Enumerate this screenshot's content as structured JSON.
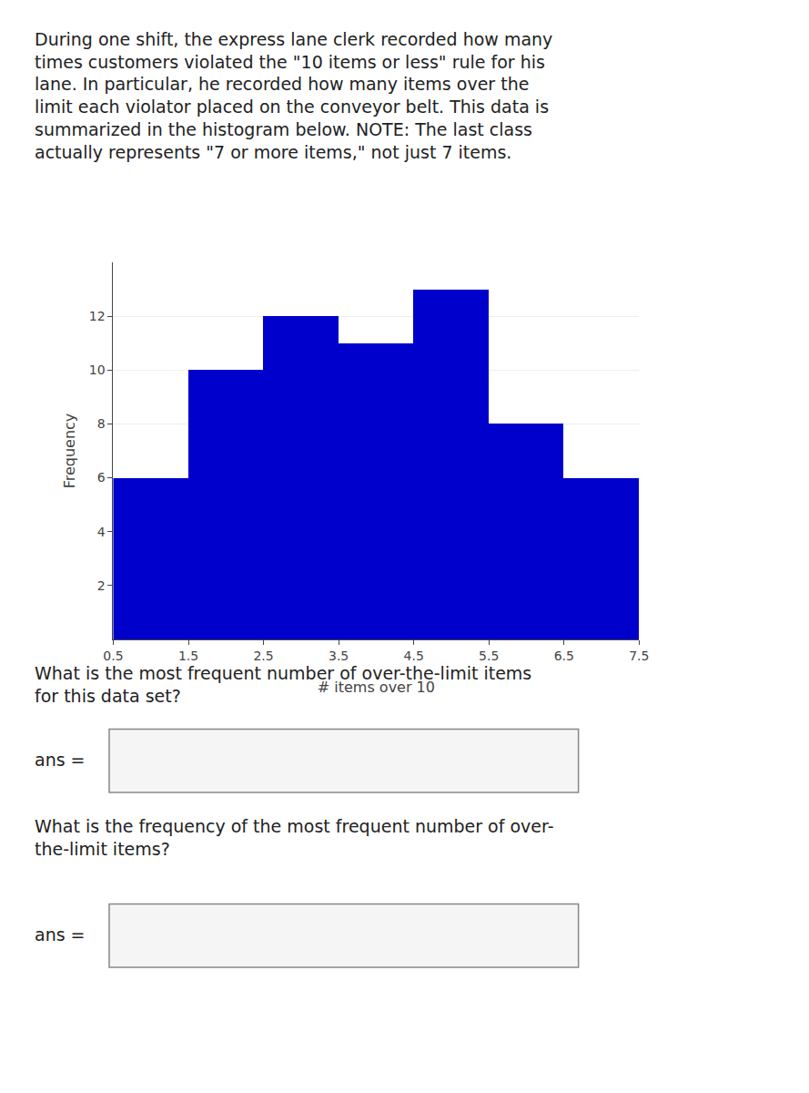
{
  "chart_data": {
    "type": "histogram",
    "subtitle": "During one shift, the express lane clerk recorded how many\ntimes customers violated the \"10 items or less\" rule for his\nlane. In particular, he recorded how many items over the\nlimit each violator placed on the conveyor belt. This data is\nsummarized in the histogram below. NOTE: The last class\nactually represents \"7 or more items,\" not just 7 items.",
    "bins": [
      0.5,
      1.5,
      2.5,
      3.5,
      4.5,
      5.5,
      6.5,
      7.5
    ],
    "values": [
      6,
      10,
      12,
      11,
      13,
      8,
      6
    ],
    "color": "#0000CC",
    "x_label": "# items over 10",
    "y_label": "Frequency",
    "xlim": [
      0.5,
      7.5
    ],
    "xticks": [
      0.5,
      1.5,
      2.5,
      3.5,
      4.5,
      5.5,
      6.5,
      7.5
    ],
    "ylim": [
      0,
      14
    ],
    "yticks": [
      2,
      4,
      6,
      8,
      10,
      12
    ],
    "grid": true,
    "annotations": [
      "What is the most frequent number of over-the-limit items\nfor this data set?",
      "ans =",
      "What is the frequency of the most frequent number of over-\nthe-limit items?",
      "ans ="
    ]
  }
}
